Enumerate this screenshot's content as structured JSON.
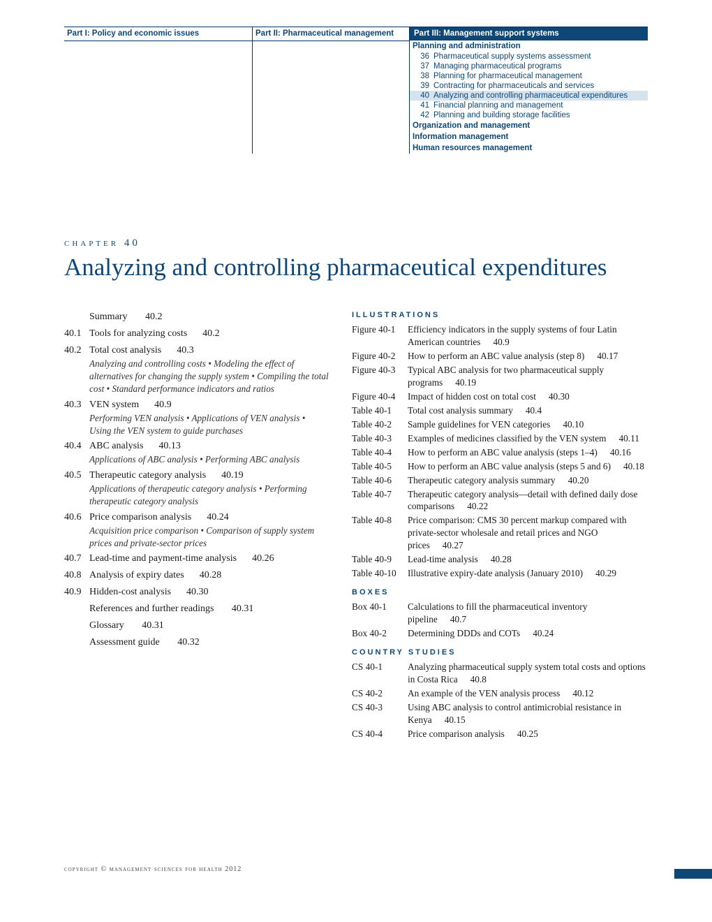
{
  "colors": {
    "brand": "#0e4776",
    "highlight_bg": "#d5e3ef",
    "text": "#1a1a1a",
    "background": "#ffffff"
  },
  "typography": {
    "body_font": "Georgia",
    "nav_font": "Arial",
    "title_size_pt": 26,
    "body_size_pt": 10.5
  },
  "nav": {
    "part1": "Part I:  Policy and economic issues",
    "part2": "Part II:  Pharmaceutical management",
    "part3": "Part III:  Management support systems",
    "section_planning": "Planning and administration",
    "items": [
      {
        "num": "36",
        "label": "Pharmaceutical supply systems assessment",
        "active": false
      },
      {
        "num": "37",
        "label": "Managing pharmaceutical programs",
        "active": false
      },
      {
        "num": "38",
        "label": "Planning for pharmaceutical management",
        "active": false
      },
      {
        "num": "39",
        "label": "Contracting for pharmaceuticals and services",
        "active": false
      },
      {
        "num": "40",
        "label": "Analyzing and controlling pharmaceutical expenditures",
        "active": true
      },
      {
        "num": "41",
        "label": "Financial planning and management",
        "active": false
      },
      {
        "num": "42",
        "label": "Planning and building storage facilities",
        "active": false
      }
    ],
    "section_org": "Organization and management",
    "section_info": "Information management",
    "section_hr": "Human resources management"
  },
  "chapter": {
    "label": "chapter 40",
    "title": "Analyzing and controlling pharmaceutical expenditures"
  },
  "toc": {
    "summary": {
      "title": "Summary",
      "page": "40.2"
    },
    "s1": {
      "num": "40.1",
      "title": "Tools for analyzing costs",
      "page": "40.2"
    },
    "s2": {
      "num": "40.2",
      "title": "Total cost analysis",
      "page": "40.3",
      "sub": "Analyzing and controlling costs  •  Modeling the effect of alternatives for changing the supply system  •  Compiling the total cost  •  Standard performance indicators and ratios"
    },
    "s3": {
      "num": "40.3",
      "title": "VEN system",
      "page": "40.9",
      "sub": "Performing VEN analysis  •  Applications of VEN analysis  •  Using the VEN system to guide purchases"
    },
    "s4": {
      "num": "40.4",
      "title": "ABC analysis",
      "page": "40.13",
      "sub": "Applications of ABC analysis  •  Performing ABC analysis"
    },
    "s5": {
      "num": "40.5",
      "title": "Therapeutic category analysis",
      "page": "40.19",
      "sub": "Applications of therapeutic category analysis  •  Performing therapeutic category analysis"
    },
    "s6": {
      "num": "40.6",
      "title": "Price comparison analysis",
      "page": "40.24",
      "sub": "Acquisition price comparison  •  Comparison of supply system prices and private-sector prices"
    },
    "s7": {
      "num": "40.7",
      "title": "Lead-time and payment-time analysis",
      "page": "40.26"
    },
    "s8": {
      "num": "40.8",
      "title": "Analysis of expiry dates",
      "page": "40.28"
    },
    "s9": {
      "num": "40.9",
      "title": "Hidden-cost analysis",
      "page": "40.30"
    },
    "refs": {
      "title": "References and further readings",
      "page": "40.31"
    },
    "glossary": {
      "title": "Glossary",
      "page": "40.31"
    },
    "assess": {
      "title": "Assessment guide",
      "page": "40.32"
    }
  },
  "hdr": {
    "illus": "illustrations",
    "boxes": "boxes",
    "cs": "country studies"
  },
  "figures": [
    {
      "label": "Figure 40-1",
      "text": "Efficiency indicators in the supply systems of four Latin American countries",
      "page": "40.9"
    },
    {
      "label": "Figure 40-2",
      "text": "How to perform an ABC value analysis (step 8)",
      "page": "40.17"
    },
    {
      "label": "Figure 40-3",
      "text": "Typical ABC analysis for two pharmaceutical supply programs",
      "page": "40.19"
    },
    {
      "label": "Figure 40-4",
      "text": "Impact of hidden cost on total cost",
      "page": "40.30"
    }
  ],
  "tables": [
    {
      "label": "Table 40-1",
      "text": "Total cost analysis summary",
      "page": "40.4"
    },
    {
      "label": "Table 40-2",
      "text": "Sample guidelines for VEN categories",
      "page": "40.10"
    },
    {
      "label": "Table 40-3",
      "text": "Examples of medicines classified by the VEN system",
      "page": "40.11"
    },
    {
      "label": "Table 40-4",
      "text": "How to perform an ABC value analysis (steps 1–4)",
      "page": "40.16"
    },
    {
      "label": "Table 40-5",
      "text": "How to perform an ABC value analysis (steps 5 and 6)",
      "page": "40.18"
    },
    {
      "label": "Table 40-6",
      "text": "Therapeutic category analysis summary",
      "page": "40.20"
    },
    {
      "label": "Table 40-7",
      "text": "Therapeutic category analysis—detail with defined daily dose comparisons",
      "page": "40.22"
    },
    {
      "label": "Table 40-8",
      "text": "Price comparison: CMS 30 percent markup compared with private-sector wholesale and retail prices and NGO prices",
      "page": "40.27"
    },
    {
      "label": "Table 40-9",
      "text": "Lead-time analysis",
      "page": "40.28"
    },
    {
      "label": "Table 40-10",
      "text": "Illustrative expiry-date analysis (January 2010)",
      "page": "40.29"
    }
  ],
  "boxes": [
    {
      "label": "Box 40-1",
      "text": "Calculations to fill the pharmaceutical inventory pipeline",
      "page": "40.7"
    },
    {
      "label": "Box 40-2",
      "text": "Determining DDDs and COTs",
      "page": "40.24"
    }
  ],
  "cs": [
    {
      "label": "CS 40-1",
      "text": "Analyzing pharmaceutical supply system total costs and options in Costa Rica",
      "page": "40.8"
    },
    {
      "label": "CS 40-2",
      "text": "An example of the VEN analysis process",
      "page": "40.12"
    },
    {
      "label": "CS 40-3",
      "text": "Using ABC analysis to control antimicrobial resistance in Kenya",
      "page": "40.15"
    },
    {
      "label": "CS 40-4",
      "text": "Price comparison analysis",
      "page": "40.25"
    }
  ],
  "copyright": "copyright © management sciences for health 2012"
}
